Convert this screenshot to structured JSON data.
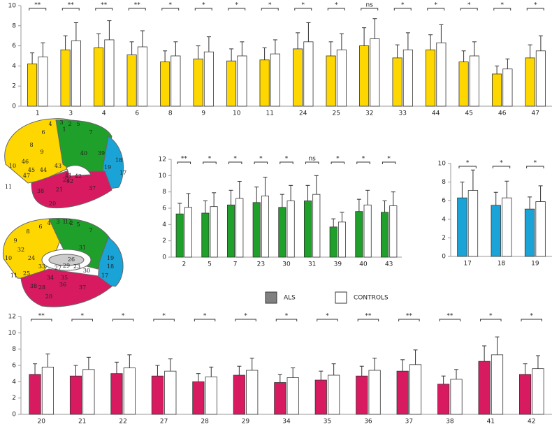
{
  "chart_data": [
    {
      "type": "bar",
      "categories": [
        "1",
        "3",
        "4",
        "6",
        "8",
        "9",
        "10",
        "11",
        "24",
        "25",
        "32",
        "33",
        "44",
        "45",
        "46",
        "47"
      ],
      "annotations": [
        "**",
        "**",
        "**",
        "**",
        "*",
        "*",
        "*",
        "*",
        "*",
        "*",
        "ns",
        "*",
        "*",
        "*",
        "*",
        "*"
      ],
      "series": [
        {
          "name": "ALS",
          "color": "#ffd700",
          "values": [
            4.2,
            5.6,
            5.8,
            5.1,
            4.4,
            4.7,
            4.5,
            4.6,
            5.7,
            5.0,
            6.0,
            4.8,
            5.6,
            4.4,
            3.2,
            4.8
          ],
          "errors": [
            1.1,
            1.4,
            1.4,
            1.3,
            1.1,
            1.3,
            1.2,
            1.2,
            1.6,
            1.4,
            1.8,
            1.3,
            1.5,
            1.1,
            0.8,
            1.3
          ]
        },
        {
          "name": "CONTROLS",
          "color": "#ffffff",
          "values": [
            4.9,
            6.5,
            6.6,
            5.9,
            5.0,
            5.4,
            5.0,
            5.2,
            6.4,
            5.6,
            6.7,
            5.6,
            6.3,
            5.0,
            3.7,
            5.5
          ],
          "errors": [
            1.4,
            1.8,
            1.9,
            1.6,
            1.4,
            1.5,
            1.4,
            1.4,
            1.9,
            1.6,
            2.0,
            1.7,
            1.8,
            1.4,
            1.0,
            1.5
          ]
        }
      ],
      "ylim": [
        0,
        10
      ],
      "yticks": [
        0,
        2,
        4,
        6,
        8,
        10
      ]
    },
    {
      "type": "bar",
      "categories": [
        "2",
        "5",
        "7",
        "23",
        "30",
        "31",
        "39",
        "40",
        "43"
      ],
      "annotations": [
        "**",
        "*",
        "*",
        "*",
        "*",
        "ns",
        "*",
        "*",
        "*"
      ],
      "series": [
        {
          "name": "ALS",
          "color": "#1fa02a",
          "values": [
            5.3,
            5.4,
            6.4,
            6.7,
            6.1,
            6.9,
            3.7,
            5.6,
            5.5
          ],
          "errors": [
            1.3,
            1.5,
            1.8,
            1.9,
            1.6,
            1.9,
            1.0,
            1.5,
            1.4
          ]
        },
        {
          "name": "CONTROLS",
          "color": "#ffffff",
          "values": [
            6.1,
            6.2,
            7.2,
            7.5,
            6.9,
            7.7,
            4.3,
            6.4,
            6.3
          ],
          "errors": [
            1.7,
            1.7,
            2.1,
            2.3,
            1.9,
            2.3,
            1.2,
            1.8,
            1.7
          ]
        }
      ],
      "ylim": [
        0,
        12
      ],
      "yticks": [
        0,
        2,
        4,
        6,
        8,
        10,
        12
      ]
    },
    {
      "type": "bar",
      "categories": [
        "17",
        "18",
        "19"
      ],
      "annotations": [
        "*",
        "*",
        "*"
      ],
      "series": [
        {
          "name": "ALS",
          "color": "#1aa3d6",
          "values": [
            6.3,
            5.5,
            5.1
          ],
          "errors": [
            1.7,
            1.4,
            1.3
          ]
        },
        {
          "name": "CONTROLS",
          "color": "#ffffff",
          "values": [
            7.1,
            6.3,
            5.9
          ],
          "errors": [
            2.2,
            1.8,
            1.7
          ]
        }
      ],
      "ylim": [
        0,
        10
      ],
      "yticks": [
        0,
        2,
        4,
        6,
        8,
        10
      ]
    },
    {
      "type": "bar",
      "categories": [
        "20",
        "21",
        "22",
        "27",
        "28",
        "29",
        "34",
        "35",
        "36",
        "37",
        "38",
        "41",
        "42"
      ],
      "annotations": [
        "**",
        "*",
        "*",
        "*",
        "*",
        "*",
        "*",
        "*",
        "**",
        "**",
        "**",
        "*",
        "*"
      ],
      "series": [
        {
          "name": "ALS",
          "color": "#d81b60",
          "values": [
            4.9,
            4.7,
            5.0,
            4.7,
            4.0,
            4.8,
            3.9,
            4.2,
            4.7,
            5.3,
            3.7,
            6.5,
            4.9
          ],
          "errors": [
            1.3,
            1.3,
            1.4,
            1.3,
            1.0,
            1.1,
            1.0,
            1.1,
            1.2,
            1.4,
            1.0,
            1.9,
            1.3
          ]
        },
        {
          "name": "CONTROLS",
          "color": "#ffffff",
          "values": [
            5.8,
            5.5,
            5.7,
            5.3,
            4.6,
            5.4,
            4.5,
            4.8,
            5.4,
            6.1,
            4.3,
            7.3,
            5.6
          ],
          "errors": [
            1.6,
            1.5,
            1.6,
            1.5,
            1.2,
            1.5,
            1.2,
            1.4,
            1.5,
            1.8,
            1.2,
            2.2,
            1.6
          ]
        }
      ],
      "ylim": [
        0,
        12
      ],
      "yticks": [
        0,
        2,
        4,
        6,
        8,
        10,
        12
      ]
    }
  ],
  "legend": {
    "colors": [
      "#808080",
      "#ffffff"
    ]
  },
  "brain": {
    "lateral": [
      "4",
      "3",
      "6",
      "8",
      "9",
      "46",
      "10",
      "45",
      "44",
      "47",
      "11",
      "1",
      "2",
      "5",
      "7",
      "40",
      "43",
      "41",
      "42",
      "22",
      "39",
      "21",
      "38",
      "37",
      "19",
      "18",
      "17",
      "20",
      "52"
    ],
    "medial": [
      "4",
      "3",
      "1",
      "2",
      "5",
      "7",
      "6",
      "8",
      "9",
      "32",
      "10",
      "24",
      "31",
      "23",
      "33",
      "27",
      "26",
      "29",
      "30",
      "19",
      "18",
      "17",
      "11",
      "25",
      "34",
      "28",
      "36",
      "35",
      "20",
      "38",
      "37",
      "12"
    ]
  }
}
